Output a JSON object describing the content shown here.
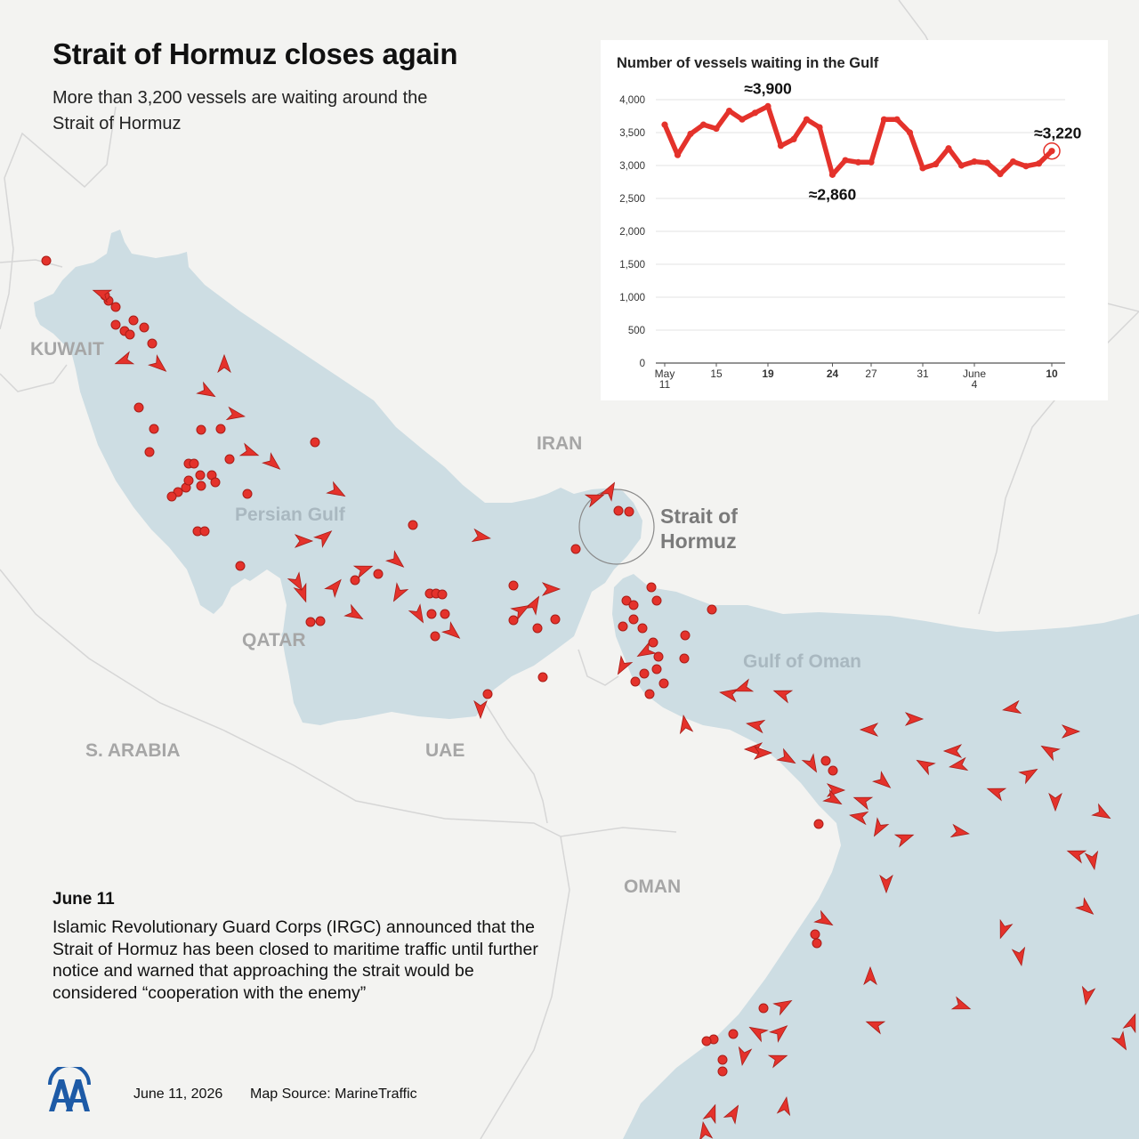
{
  "header": {
    "title": "Strait of Hormuz closes again",
    "subtitle": "More than 3,200 vessels are waiting around the Strait of Hormuz"
  },
  "map": {
    "countries": [
      "KUWAIT",
      "IRAN",
      "QATAR",
      "S. ARABIA",
      "UAE",
      "OMAN"
    ],
    "seas": [
      "Persian Gulf",
      "Gulf of Oman"
    ],
    "strait_label": "Strait of Hormuz",
    "colors": {
      "land": "#f3f3f1",
      "water": "#cddde3",
      "border": "#d4d4d4",
      "vessel": "#e4322b",
      "vessel_outline": "#a91d18"
    },
    "vessel_icons": [
      "dot-icon",
      "arrow-icon"
    ]
  },
  "event": {
    "date": "June 11",
    "text": "Islamic Revolutionary Guard Corps (IRGC) announced that the Strait of Hormuz has been closed to maritime traffic until further notice and warned that approaching the strait would be considered “cooperation with the enemy”"
  },
  "footer": {
    "date": "June 11, 2026",
    "source": "Map Source: MarineTraffic",
    "logo_icon": "aa-logo-icon"
  },
  "chart_data": {
    "type": "line",
    "title": "Number of vessels waiting in the Gulf",
    "ylim": [
      0,
      4000
    ],
    "yticks": [
      0,
      500,
      1000,
      1500,
      2000,
      2500,
      3000,
      3500,
      4000
    ],
    "ytick_labels": [
      "0",
      "500",
      "1,000",
      "1,500",
      "2,000",
      "2,500",
      "3,000",
      "3,500",
      "4,000"
    ],
    "xticks": [
      {
        "day": 0,
        "label": "May",
        "sublabel": "11",
        "bold": false
      },
      {
        "day": 4,
        "label": "15",
        "sublabel": "",
        "bold": false
      },
      {
        "day": 8,
        "label": "19",
        "sublabel": "",
        "bold": true
      },
      {
        "day": 13,
        "label": "24",
        "sublabel": "",
        "bold": true
      },
      {
        "day": 16,
        "label": "27",
        "sublabel": "",
        "bold": false
      },
      {
        "day": 20,
        "label": "31",
        "sublabel": "",
        "bold": false
      },
      {
        "day": 24,
        "label": "June",
        "sublabel": "4",
        "bold": false
      },
      {
        "day": 30,
        "label": "10",
        "sublabel": "",
        "bold": true
      }
    ],
    "grid": true,
    "series": [
      {
        "x": [
          0,
          1,
          2,
          3,
          4,
          5,
          6,
          7,
          8,
          9,
          10,
          11,
          12,
          13,
          14,
          15,
          16,
          17,
          18,
          19,
          20,
          21,
          22,
          23,
          24,
          25,
          26,
          27,
          28,
          29,
          30
        ],
        "values": [
          3620,
          3160,
          3480,
          3620,
          3560,
          3830,
          3700,
          3800,
          3900,
          3300,
          3400,
          3700,
          3580,
          2860,
          3080,
          3050,
          3050,
          3700,
          3700,
          3500,
          2960,
          3020,
          3260,
          3000,
          3060,
          3040,
          2870,
          3060,
          2990,
          3030,
          3220
        ]
      }
    ],
    "annotations": [
      {
        "label": "≈3,900",
        "day": 8,
        "value": 3900,
        "position": "above"
      },
      {
        "label": "≈2,860",
        "day": 13,
        "value": 2860,
        "position": "below"
      },
      {
        "label": "≈3,220",
        "day": 30,
        "value": 3220,
        "position": "above"
      }
    ],
    "color": "#e4322b"
  }
}
